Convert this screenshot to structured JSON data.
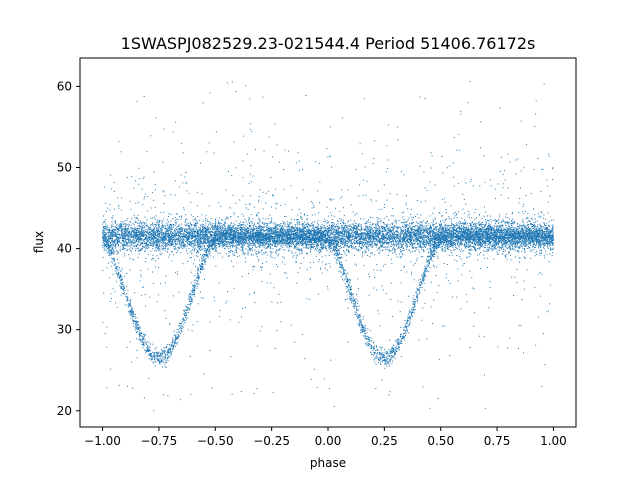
{
  "chart_data": {
    "type": "scatter",
    "title": "1SWASPJ082529.23-021544.4 Period 51406.76172s",
    "xlabel": "phase",
    "ylabel": "flux",
    "xlim": [
      -1.1,
      1.1
    ],
    "ylim": [
      18,
      63.5
    ],
    "x_ticks": [
      -1.0,
      -0.75,
      -0.5,
      -0.25,
      0.0,
      0.25,
      0.5,
      0.75,
      1.0
    ],
    "x_tick_labels": [
      "−1.00",
      "−0.75",
      "−0.50",
      "−0.25",
      "0.00",
      "0.25",
      "0.50",
      "0.75",
      "1.00"
    ],
    "y_ticks": [
      20,
      30,
      40,
      50,
      60
    ],
    "y_tick_labels": [
      "20",
      "30",
      "40",
      "50",
      "60"
    ],
    "grid": false,
    "marker_color": "#1f77b4",
    "series": [
      {
        "x_range": [
          -1.0,
          1.0
        ],
        "baseline_flux": 41.5,
        "baseline_scatter": 0.9,
        "eclipse_minima": [
          {
            "phase": -0.75,
            "flux": 26.5
          },
          {
            "phase": 0.25,
            "flux": 26.5
          }
        ],
        "eclipse_half_width": 0.26
      }
    ]
  }
}
